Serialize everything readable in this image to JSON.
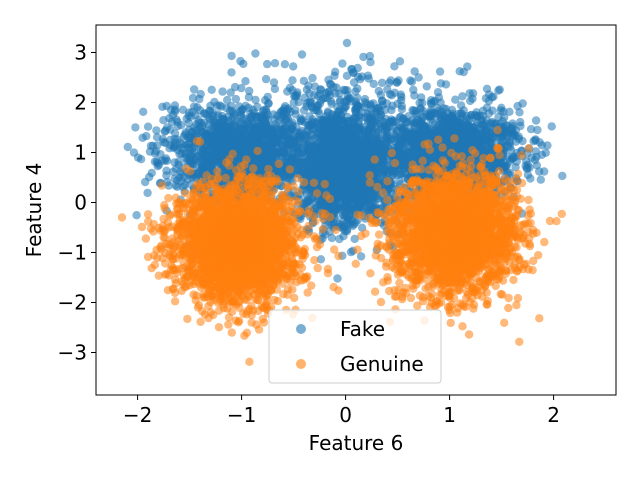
{
  "chart_data": {
    "type": "scatter",
    "xlabel": "Feature 6",
    "ylabel": "Feature 4",
    "xlim": [
      -2.4,
      2.6
    ],
    "ylim": [
      -3.85,
      3.55
    ],
    "xticks": [
      -2,
      -1,
      0,
      1,
      2
    ],
    "yticks": [
      -3,
      -2,
      -1,
      0,
      1,
      2,
      3
    ],
    "xtick_labels": [
      "−2",
      "−1",
      "0",
      "1",
      "2"
    ],
    "ytick_labels": [
      "−3",
      "−2",
      "−1",
      "0",
      "1",
      "2",
      "3"
    ],
    "grid": false,
    "legend": {
      "placement": "bottom-center"
    },
    "series": [
      {
        "name": "Fake",
        "color": "#1f77b4",
        "point_count": 5000,
        "clusters": [
          {
            "mean": [
              0.0,
              0.7
            ],
            "std": [
              0.22,
              0.55
            ],
            "weight": 0.35
          },
          {
            "mean": [
              -1.0,
              1.0
            ],
            "std": [
              0.35,
              0.45
            ],
            "weight": 0.3
          },
          {
            "mean": [
              1.0,
              1.0
            ],
            "std": [
              0.35,
              0.45
            ],
            "weight": 0.3
          },
          {
            "mean": [
              0.0,
              1.9
            ],
            "std": [
              0.6,
              0.5
            ],
            "weight": 0.05
          }
        ]
      },
      {
        "name": "Genuine",
        "color": "#ff7f0e",
        "point_count": 5000,
        "clusters": [
          {
            "mean": [
              -1.05,
              -0.8
            ],
            "std": [
              0.3,
              0.6
            ],
            "weight": 0.5
          },
          {
            "mean": [
              1.05,
              -0.6
            ],
            "std": [
              0.3,
              0.6
            ],
            "weight": 0.5
          }
        ]
      }
    ]
  }
}
